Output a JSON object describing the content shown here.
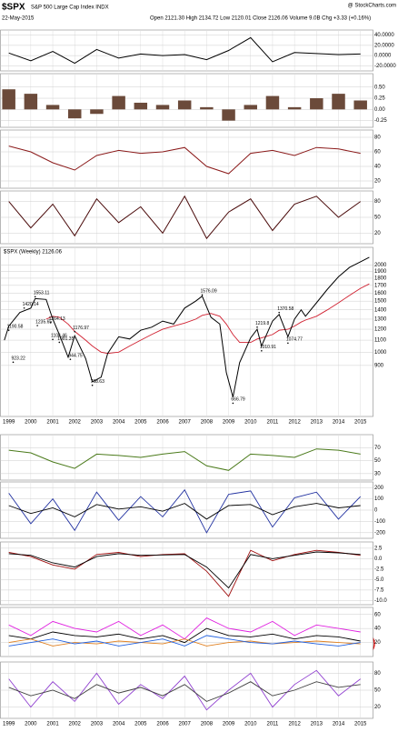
{
  "header": {
    "symbol": "$SPX",
    "name": "S&P 500 Large Cap Index INDX",
    "date": "22-May-2015",
    "quote": "Open 2121.30  High 2134.72  Low 2120.01  Close 2126.06  Volume 9.0B  Chg +3.33 (+0.16%)",
    "source": "@ StockCharts.com"
  },
  "chart_data": [
    {
      "type": "line",
      "x": [
        1999,
        2000,
        2001,
        2002,
        2003,
        2004,
        2005,
        2006,
        2007,
        2008,
        2009,
        2010,
        2011,
        2012,
        2013,
        2014,
        2015
      ],
      "values": [
        5,
        -10,
        8,
        -15,
        12,
        -5,
        3,
        0,
        2,
        -8,
        10,
        35,
        -12,
        6,
        4,
        2,
        3
      ],
      "color": "#000000",
      "ylim": [
        -30,
        50
      ],
      "yticks": [
        {
          "value": 40,
          "label": "40.0000"
        },
        {
          "value": 20,
          "label": "20.0000"
        },
        {
          "value": 0,
          "label": "0.0000"
        },
        {
          "value": -20,
          "label": "-20.0000"
        }
      ]
    },
    {
      "type": "bar",
      "x": [
        1999,
        2000,
        2001,
        2002,
        2003,
        2004,
        2005,
        2006,
        2007,
        2008,
        2009,
        2010,
        2011,
        2012,
        2013,
        2014,
        2015
      ],
      "values": [
        0.45,
        0.35,
        0.1,
        -0.2,
        -0.1,
        0.3,
        0.15,
        0.1,
        0.2,
        0.05,
        -0.25,
        0.1,
        0.3,
        0.05,
        0.25,
        0.35,
        0.2
      ],
      "color": "#6b4a3a",
      "ylim": [
        -0.4,
        0.8
      ],
      "yticks": [
        {
          "value": 0.5,
          "label": "0.50"
        },
        {
          "value": 0.25,
          "label": "0.25"
        },
        {
          "value": 0,
          "label": "0.00"
        },
        {
          "value": -0.25,
          "label": "-0.25"
        }
      ]
    },
    {
      "type": "line",
      "x": [
        1999,
        2000,
        2001,
        2002,
        2003,
        2004,
        2005,
        2006,
        2007,
        2008,
        2009,
        2010,
        2011,
        2012,
        2013,
        2014,
        2015
      ],
      "values": [
        68,
        60,
        45,
        35,
        55,
        62,
        58,
        60,
        66,
        40,
        30,
        58,
        62,
        55,
        66,
        64,
        58
      ],
      "color": "#8b1a1a",
      "ylim": [
        10,
        90
      ],
      "yticks": [
        80,
        60,
        40,
        20
      ]
    },
    {
      "type": "line",
      "x": [
        1999,
        2000,
        2001,
        2002,
        2003,
        2004,
        2005,
        2006,
        2007,
        2008,
        2009,
        2010,
        2011,
        2012,
        2013,
        2014,
        2015
      ],
      "values": [
        80,
        30,
        75,
        15,
        85,
        40,
        70,
        20,
        90,
        10,
        60,
        85,
        25,
        75,
        90,
        50,
        80
      ],
      "color": "#4a0a0a",
      "ylim": [
        0,
        100
      ],
      "yticks": [
        80,
        50,
        20
      ]
    },
    {
      "type": "line",
      "title": "$SPX (Weekly) 2126.06",
      "log_scale": true,
      "x": [
        1998.8,
        1999.0,
        1999.5,
        2000.0,
        2000.2,
        2000.7,
        2001.0,
        2001.3,
        2001.7,
        2002.0,
        2002.5,
        2002.8,
        2003.2,
        2003.5,
        2004.0,
        2004.5,
        2005.0,
        2005.5,
        2006.0,
        2006.5,
        2007.0,
        2007.5,
        2007.8,
        2008.2,
        2008.6,
        2008.9,
        2009.2,
        2009.5,
        2010.0,
        2010.3,
        2010.5,
        2011.0,
        2011.3,
        2011.7,
        2012.0,
        2012.3,
        2012.5,
        2013.0,
        2013.5,
        2014.0,
        2014.5,
        2015.0,
        2015.4
      ],
      "values": [
        1100,
        1230,
        1370,
        1420,
        1530,
        1520,
        1300,
        1150,
        960,
        1140,
        950,
        790,
        820,
        990,
        1130,
        1110,
        1190,
        1220,
        1280,
        1250,
        1420,
        1500,
        1560,
        1320,
        1250,
        850,
        700,
        920,
        1120,
        1200,
        1050,
        1280,
        1350,
        1130,
        1300,
        1400,
        1330,
        1480,
        1650,
        1820,
        1960,
        2050,
        2126
      ],
      "color": "#000000",
      "ma": {
        "values": [
          null,
          null,
          null,
          null,
          null,
          1300,
          1330,
          1320,
          1250,
          1180,
          1100,
          1050,
          1000,
          990,
          1000,
          1050,
          1100,
          1150,
          1200,
          1230,
          1260,
          1300,
          1340,
          1360,
          1330,
          1250,
          1150,
          1080,
          1080,
          1110,
          1120,
          1150,
          1190,
          1200,
          1230,
          1270,
          1290,
          1330,
          1400,
          1480,
          1570,
          1660,
          1720
        ],
        "color": "#d02030"
      },
      "annotations": [
        {
          "x": 2000.2,
          "value": 1553.11
        },
        {
          "x": 1999.7,
          "value": 1420.14
        },
        {
          "x": 1999.0,
          "value": 1190.58
        },
        {
          "x": 2000.9,
          "value": 1264.13
        },
        {
          "x": 2000.3,
          "value": 1235.65
        },
        {
          "x": 2001.0,
          "value": 1106.46
        },
        {
          "x": 2002.0,
          "value": 1176.97
        },
        {
          "x": 2001.3,
          "value": 1081.35
        },
        {
          "x": 2001.8,
          "value": 944.75
        },
        {
          "x": 1999.2,
          "value": 923.22
        },
        {
          "x": 2002.8,
          "value": 768.63
        },
        {
          "x": 2007.8,
          "value": 1576.09
        },
        {
          "x": 2009.2,
          "value": 666.79
        },
        {
          "x": 2010.3,
          "value": 1219.8
        },
        {
          "x": 2011.3,
          "value": 1370.58
        },
        {
          "x": 2010.5,
          "value": 1010.91
        },
        {
          "x": 2011.7,
          "value": 1074.77
        }
      ],
      "ylim": [
        600,
        2300
      ],
      "yticks": [
        900,
        1000,
        1100,
        1200,
        1300,
        1400,
        1500,
        1600,
        1700,
        1800,
        1900,
        2000
      ],
      "xlim": [
        1998.6,
        2015.55
      ],
      "xticks": [
        1999,
        2000,
        2001,
        2002,
        2003,
        2004,
        2005,
        2006,
        2007,
        2008,
        2009,
        2010,
        2011,
        2012,
        2013,
        2014,
        2015
      ]
    },
    {
      "type": "line",
      "x": [
        1999,
        2000,
        2001,
        2002,
        2003,
        2004,
        2005,
        2006,
        2007,
        2008,
        2009,
        2010,
        2011,
        2012,
        2013,
        2014,
        2015
      ],
      "values": [
        66,
        62,
        48,
        38,
        60,
        58,
        55,
        60,
        64,
        42,
        35,
        60,
        58,
        55,
        68,
        66,
        60
      ],
      "color": "#4a7a1a",
      "ylim": [
        20,
        90
      ],
      "yticks": [
        70,
        50,
        30
      ]
    },
    {
      "type": "line",
      "x": [
        1999,
        2000,
        2001,
        2002,
        2003,
        2004,
        2005,
        2006,
        2007,
        2008,
        2009,
        2010,
        2011,
        2012,
        2013,
        2014,
        2015
      ],
      "series": [
        {
          "color": "#2030a0",
          "values": [
            150,
            -120,
            100,
            -180,
            160,
            -90,
            120,
            -60,
            180,
            -200,
            140,
            170,
            -150,
            110,
            160,
            -80,
            120
          ]
        },
        {
          "color": "#000000",
          "values": [
            40,
            -30,
            20,
            -60,
            50,
            10,
            30,
            -10,
            60,
            -80,
            40,
            50,
            -40,
            30,
            60,
            20,
            40
          ]
        }
      ],
      "ylim": [
        -250,
        250
      ],
      "yticks": [
        200,
        100,
        0,
        -100,
        -200
      ]
    },
    {
      "type": "line",
      "x": [
        1999,
        2000,
        2001,
        2002,
        2003,
        2004,
        2005,
        2006,
        2007,
        2008,
        2009,
        2010,
        2011,
        2012,
        2013,
        2014,
        2015
      ],
      "series": [
        {
          "color": "#a01010",
          "values": [
            1.5,
            0.5,
            -1.5,
            -2.5,
            1,
            1.5,
            0.5,
            1,
            1.2,
            -3,
            -9,
            2,
            -0.5,
            1,
            2,
            1.5,
            0.8
          ]
        },
        {
          "color": "#000000",
          "values": [
            1.2,
            0.8,
            -1,
            -2,
            0.5,
            1.2,
            0.8,
            0.9,
            1,
            -2,
            -7,
            1,
            0,
            0.8,
            1.6,
            1.4,
            1
          ]
        }
      ],
      "ylim": [
        -11,
        4
      ],
      "yticks": [
        2.5,
        {
          "value": 0,
          "label": "0.0"
        },
        -2.5,
        {
          "value": -5,
          "label": "-5.0"
        },
        -7.5,
        {
          "value": -10,
          "label": "-10.0"
        }
      ]
    },
    {
      "type": "line",
      "x": [
        1999,
        2000,
        2001,
        2002,
        2003,
        2004,
        2005,
        2006,
        2007,
        2008,
        2009,
        2010,
        2011,
        2012,
        2013,
        2014,
        2015
      ],
      "series": [
        {
          "color": "#e020e0",
          "values": [
            45,
            30,
            50,
            40,
            35,
            50,
            30,
            45,
            25,
            55,
            40,
            35,
            50,
            30,
            45,
            40,
            35
          ]
        },
        {
          "color": "#000000",
          "values": [
            30,
            25,
            35,
            30,
            28,
            32,
            25,
            30,
            20,
            40,
            30,
            28,
            32,
            25,
            30,
            28,
            22
          ]
        },
        {
          "color": "#e08020",
          "values": [
            20,
            25,
            15,
            20,
            18,
            22,
            20,
            18,
            25,
            15,
            20,
            22,
            18,
            20,
            22,
            20,
            18
          ]
        },
        {
          "color": "#2060e0",
          "values": [
            15,
            20,
            25,
            18,
            22,
            15,
            20,
            25,
            15,
            30,
            25,
            20,
            18,
            22,
            18,
            15,
            20
          ]
        }
      ],
      "ylim": [
        0,
        70
      ],
      "yticks": [
        60,
        40,
        20
      ]
    },
    {
      "type": "line",
      "x": [
        1999,
        2000,
        2001,
        2002,
        2003,
        2004,
        2005,
        2006,
        2007,
        2008,
        2009,
        2010,
        2011,
        2012,
        2013,
        2014,
        2015
      ],
      "series": [
        {
          "color": "#9040d0",
          "values": [
            70,
            20,
            65,
            30,
            80,
            25,
            60,
            35,
            75,
            15,
            50,
            80,
            20,
            60,
            85,
            40,
            70
          ]
        },
        {
          "color": "#404040",
          "values": [
            55,
            40,
            50,
            35,
            60,
            45,
            55,
            40,
            60,
            30,
            45,
            65,
            40,
            50,
            65,
            55,
            60
          ]
        }
      ],
      "ylim": [
        0,
        100
      ],
      "yticks": [
        80,
        50,
        20
      ]
    }
  ]
}
